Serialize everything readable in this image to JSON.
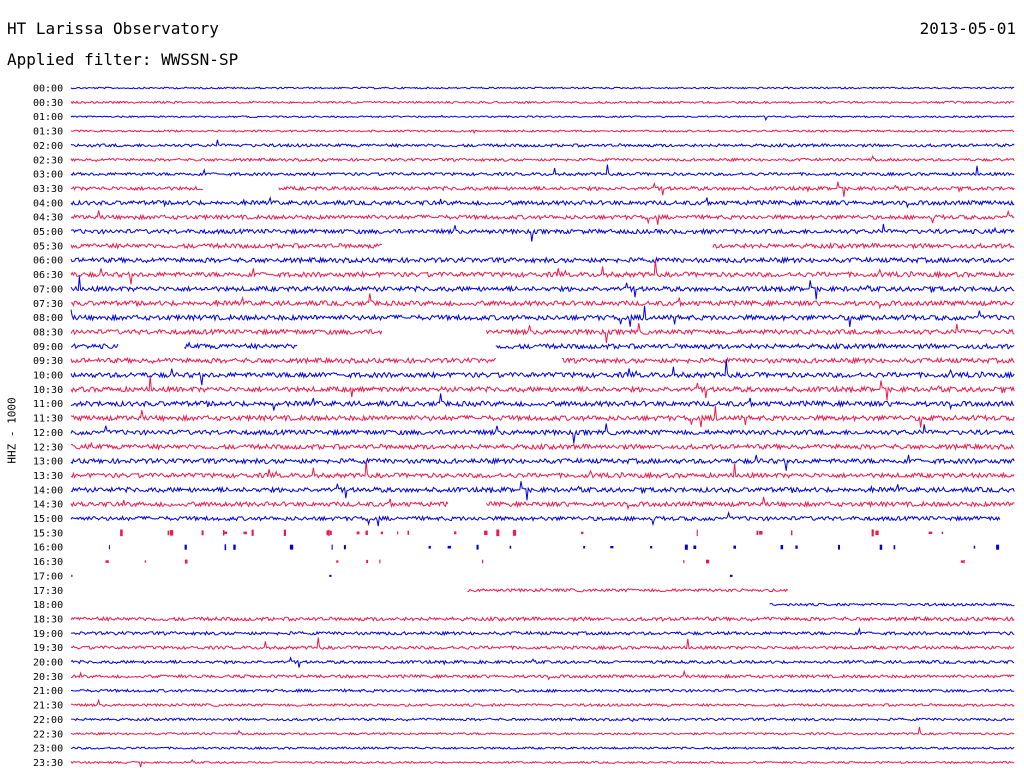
{
  "header": {
    "station": "HT Larissa Observatory",
    "date": "2013-05-01",
    "filter_prefix": "Applied filter:",
    "filter_name": "WWSSN-SP",
    "channel": "HHZ - 1000"
  },
  "colors": {
    "trace_a": "#0000e6",
    "trace_b": "#ef1a4c",
    "background": "#ffffff",
    "text": "#000000"
  },
  "chart_data": {
    "type": "line",
    "xlabel": "",
    "ylabel": "HHZ - 1000",
    "grid": false,
    "legend": "none",
    "rows": [
      {
        "time": "00:00",
        "activity": 0.1
      },
      {
        "time": "00:30",
        "activity": 0.18
      },
      {
        "time": "01:00",
        "activity": 0.1
      },
      {
        "time": "01:30",
        "activity": 0.15
      },
      {
        "time": "02:00",
        "activity": 0.4
      },
      {
        "time": "02:30",
        "activity": 0.35
      },
      {
        "time": "03:00",
        "activity": 0.4
      },
      {
        "time": "03:30",
        "activity": 0.55,
        "gaps": [
          [
            0.14,
            0.22
          ]
        ]
      },
      {
        "time": "04:00",
        "activity": 0.7
      },
      {
        "time": "04:30",
        "activity": 0.65
      },
      {
        "time": "05:00",
        "activity": 0.7
      },
      {
        "time": "05:30",
        "activity": 0.75,
        "gaps": [
          [
            0.33,
            0.68
          ]
        ]
      },
      {
        "time": "06:00",
        "activity": 0.8
      },
      {
        "time": "06:30",
        "activity": 0.8
      },
      {
        "time": "07:00",
        "activity": 0.8
      },
      {
        "time": "07:30",
        "activity": 0.8
      },
      {
        "time": "08:00",
        "activity": 0.85
      },
      {
        "time": "08:30",
        "activity": 0.8,
        "gaps": [
          [
            0.33,
            0.44
          ]
        ]
      },
      {
        "time": "09:00",
        "activity": 0.8,
        "gaps": [
          [
            0.05,
            0.12
          ],
          [
            0.24,
            0.45
          ]
        ]
      },
      {
        "time": "09:30",
        "activity": 0.8,
        "gaps": [
          [
            0.45,
            0.52
          ]
        ]
      },
      {
        "time": "10:00",
        "activity": 0.85
      },
      {
        "time": "10:30",
        "activity": 0.85
      },
      {
        "time": "11:00",
        "activity": 0.85
      },
      {
        "time": "11:30",
        "activity": 0.85
      },
      {
        "time": "12:00",
        "activity": 0.8
      },
      {
        "time": "12:30",
        "activity": 0.8
      },
      {
        "time": "13:00",
        "activity": 0.8
      },
      {
        "time": "13:30",
        "activity": 0.75
      },
      {
        "time": "14:00",
        "activity": 0.8
      },
      {
        "time": "14:30",
        "activity": 0.75,
        "gaps": [
          [
            0.4,
            0.44
          ]
        ]
      },
      {
        "time": "15:00",
        "activity": 0.65,
        "end": 0.985
      },
      {
        "time": "15:30",
        "activity": 0.5,
        "sparse": true
      },
      {
        "time": "16:00",
        "activity": 0.4,
        "sparse": true
      },
      {
        "time": "16:30",
        "activity": 0.2,
        "sparse": true
      },
      {
        "time": "17:00",
        "activity": 0.05,
        "sparse": true
      },
      {
        "time": "17:30",
        "activity": 0.4,
        "segments": [
          [
            0.42,
            0.76
          ]
        ]
      },
      {
        "time": "18:00",
        "activity": 0.3,
        "segments": [
          [
            0.74,
            1.0
          ]
        ]
      },
      {
        "time": "18:30",
        "activity": 0.55
      },
      {
        "time": "19:00",
        "activity": 0.45
      },
      {
        "time": "19:30",
        "activity": 0.45
      },
      {
        "time": "20:00",
        "activity": 0.4
      },
      {
        "time": "20:30",
        "activity": 0.4
      },
      {
        "time": "21:00",
        "activity": 0.35
      },
      {
        "time": "21:30",
        "activity": 0.3
      },
      {
        "time": "22:00",
        "activity": 0.3
      },
      {
        "time": "22:30",
        "activity": 0.2
      },
      {
        "time": "23:00",
        "activity": 0.2
      },
      {
        "time": "23:30",
        "activity": 0.15
      }
    ]
  }
}
